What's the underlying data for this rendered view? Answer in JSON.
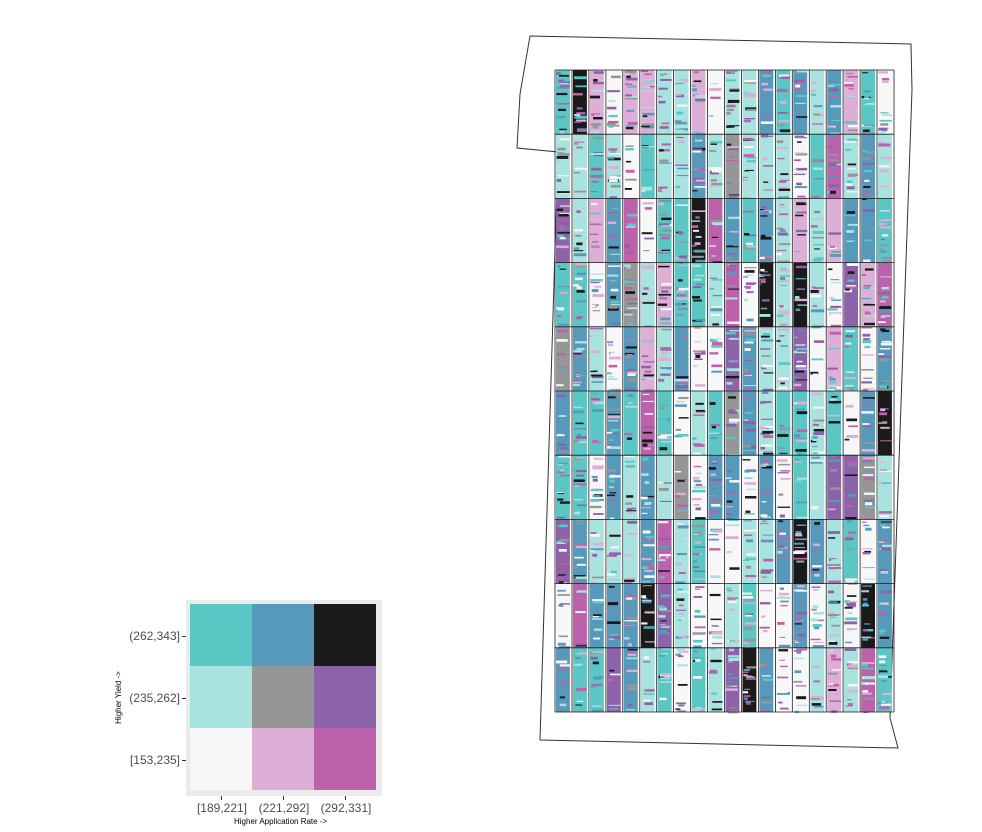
{
  "map": {
    "title": "",
    "color_classes": {
      "yield_levels": [
        "[153,235]",
        "(235,262]",
        "(262,343]"
      ],
      "application_rate_levels": [
        "[189,221]",
        "(221,292]",
        "(292,331]"
      ]
    },
    "colors": {
      "background": "#ffffff",
      "trial_grid_stroke": "#1a1a1a",
      "field_boundary": "#333333"
    },
    "trial_grid": {
      "columns": 20,
      "rows": 10
    }
  },
  "legend": {
    "y_axis_title": "Higher Yield ->",
    "x_axis_title": "Higher Application Rate ->",
    "y_tick_labels": [
      "(262,343]",
      "(235,262]",
      "[153,235]"
    ],
    "x_tick_labels": [
      "[189,221]",
      "(221,292]",
      "(292,331]"
    ],
    "cells": [
      [
        "#5ac7c5",
        "#5699ba",
        "#1a1a1a"
      ],
      [
        "#a8e3e0",
        "#969696",
        "#8c62a9"
      ],
      [
        "#f7f7f7",
        "#ddafd6",
        "#bc61ac"
      ]
    ],
    "panel_background": "#ebebeb"
  }
}
